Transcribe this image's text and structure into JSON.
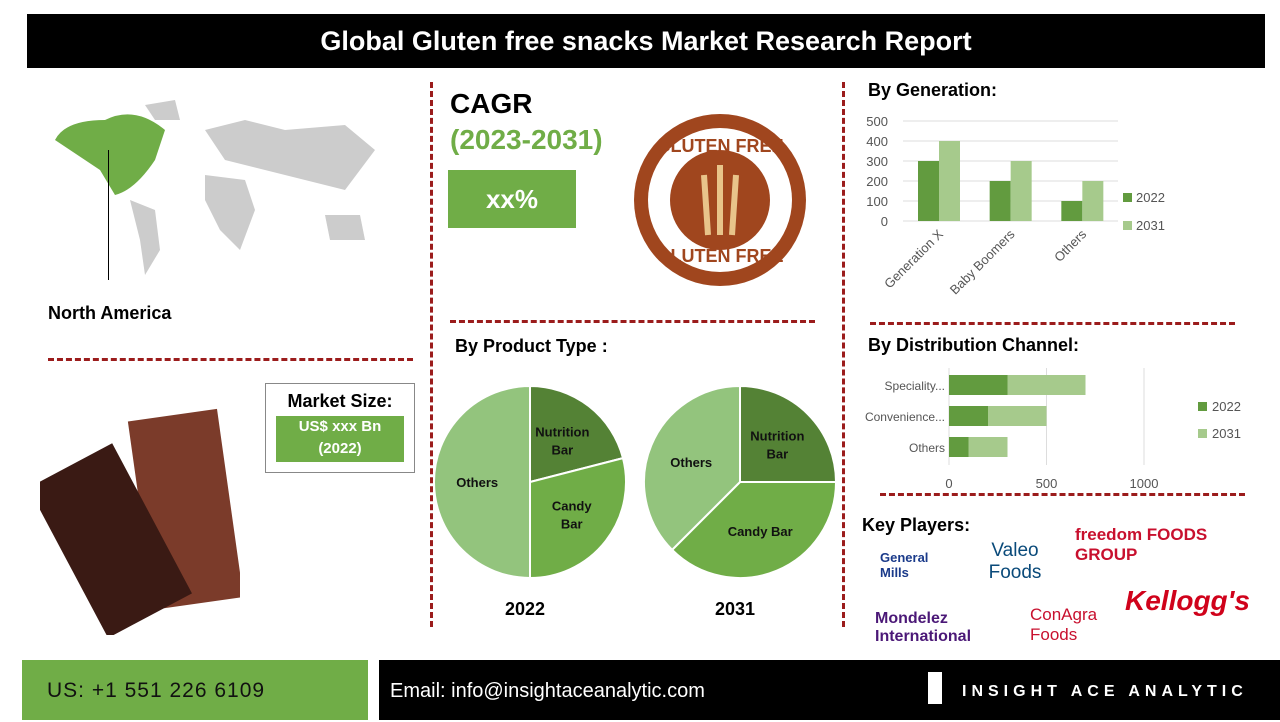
{
  "title": "Global Gluten free snacks Market Research Report",
  "region": "North America",
  "cagr": {
    "label": "CAGR",
    "period": "(2023-2031)",
    "value": "xx%"
  },
  "market_size": {
    "label": "Market Size:",
    "value": "US$ xxx Bn",
    "year": "(2022)"
  },
  "badge": {
    "top": "GLUTEN FREE",
    "bottom": "GLUTEN FREE"
  },
  "sections": {
    "generation": "By Generation:",
    "product": "By Product Type :",
    "distribution": "By Distribution Channel:",
    "players": "Key Players:"
  },
  "colors": {
    "s2022": "#629b3f",
    "s2031": "#a6ca8c",
    "accent": "#70ad47",
    "divider": "#9b1c1c"
  },
  "chart_data": [
    {
      "type": "bar",
      "title": "By Generation:",
      "categories": [
        "Generation X",
        "Baby Boomers",
        "Others"
      ],
      "series": [
        {
          "name": "2022",
          "values": [
            300,
            200,
            100
          ]
        },
        {
          "name": "2031",
          "values": [
            400,
            300,
            200
          ]
        }
      ],
      "ylim": [
        0,
        500
      ],
      "yticks": [
        "0",
        "100",
        "200",
        "300",
        "400",
        "500"
      ],
      "grid": true,
      "legend": "right"
    },
    {
      "type": "bar",
      "orientation": "horizontal",
      "stacked": true,
      "title": "By Distribution Channel:",
      "categories": [
        "Speciality...",
        "Convenience...",
        "Others"
      ],
      "series": [
        {
          "name": "2022",
          "values": [
            300,
            200,
            100
          ]
        },
        {
          "name": "2031",
          "values": [
            400,
            300,
            200
          ]
        }
      ],
      "xlim": [
        0,
        1000
      ],
      "xticks": [
        "0",
        "500",
        "1000"
      ],
      "grid": true,
      "legend": "right"
    },
    {
      "type": "pie",
      "title": "2022",
      "labels": [
        "Nutrition Bar",
        "Candy Bar",
        "Others"
      ],
      "values": [
        21,
        29,
        50
      ],
      "colors": [
        "#548235",
        "#70ad47",
        "#93c47d"
      ]
    },
    {
      "type": "pie",
      "title": "2031",
      "labels": [
        "Nutrition Bar",
        "Candy Bar",
        "Others"
      ],
      "values": [
        25,
        37.5,
        37.5
      ],
      "colors": [
        "#548235",
        "#70ad47",
        "#93c47d"
      ]
    }
  ],
  "players": [
    "General Mills",
    "Valeo Foods",
    "freedom FOODS GROUP",
    "Mondelez International",
    "ConAgra Foods",
    "Kellogg's"
  ],
  "footer": {
    "phone": "US: +1 551 226 6109",
    "email": "Email: info@insightaceanalytic.com",
    "brand": "INSIGHT ACE ANALYTIC"
  }
}
